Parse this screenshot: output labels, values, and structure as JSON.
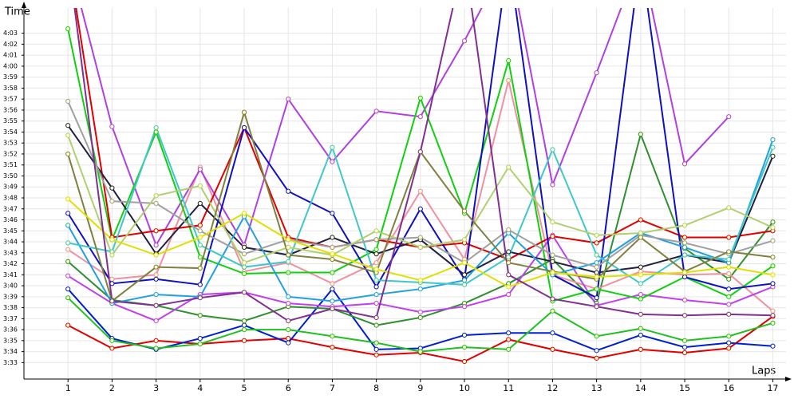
{
  "chart_data": {
    "type": "line",
    "x_label": "Laps",
    "y_label": "Time",
    "x": [
      1,
      2,
      3,
      4,
      5,
      6,
      7,
      8,
      9,
      10,
      11,
      12,
      13,
      14,
      15,
      16,
      17
    ],
    "xlim": [
      0,
      17.3
    ],
    "xticks": [
      1,
      2,
      3,
      4,
      5,
      6,
      7,
      8,
      9,
      10,
      11,
      12,
      13,
      14,
      15,
      16,
      17
    ],
    "ylim": [
      211.5,
      245.3
    ],
    "yticks": [
      {
        "value": 213,
        "label": "3:33"
      },
      {
        "value": 214,
        "label": "3:34"
      },
      {
        "value": 215,
        "label": "3:35"
      },
      {
        "value": 216,
        "label": "3:36"
      },
      {
        "value": 217,
        "label": "3:37"
      },
      {
        "value": 218,
        "label": "3:38"
      },
      {
        "value": 219,
        "label": "3:39"
      },
      {
        "value": 220,
        "label": "3:40"
      },
      {
        "value": 221,
        "label": "3:41"
      },
      {
        "value": 222,
        "label": "3:42"
      },
      {
        "value": 223,
        "label": "3:43"
      },
      {
        "value": 224,
        "label": "3:44"
      },
      {
        "value": 225,
        "label": "3:45"
      },
      {
        "value": 226,
        "label": "3:46"
      },
      {
        "value": 227,
        "label": "3:47"
      },
      {
        "value": 228,
        "label": "3:48"
      },
      {
        "value": 229,
        "label": "3:49"
      },
      {
        "value": 230,
        "label": "3:50"
      },
      {
        "value": 231,
        "label": "3:51"
      },
      {
        "value": 232,
        "label": "3:52"
      },
      {
        "value": 233,
        "label": "3:53"
      },
      {
        "value": 234,
        "label": "3:54"
      },
      {
        "value": 235,
        "label": "3:55"
      },
      {
        "value": 236,
        "label": "3:56"
      },
      {
        "value": 237,
        "label": "3:57"
      },
      {
        "value": 238,
        "label": "3:58"
      },
      {
        "value": 239,
        "label": "3:59"
      },
      {
        "value": 240,
        "label": "4:00"
      },
      {
        "value": 241,
        "label": "4:01"
      },
      {
        "value": 242,
        "label": "4:02"
      },
      {
        "value": 243,
        "label": "4:03"
      }
    ],
    "grid": true,
    "series": [
      {
        "color": "#e00000",
        "values": [
          216.4,
          214.3,
          215.0,
          214.7,
          215.0,
          215.2,
          214.4,
          213.7,
          213.9,
          213.1,
          215.1,
          214.2,
          213.4,
          214.2,
          213.9,
          214.3,
          217.2
        ]
      },
      {
        "color": "#0020d0",
        "values": [
          219.7,
          215.2,
          214.2,
          215.2,
          216.4,
          214.8,
          219.7,
          214.2,
          214.3,
          215.5,
          215.7,
          215.7,
          214.1,
          215.5,
          214.4,
          214.8,
          214.5
        ]
      },
      {
        "color": "#20c020",
        "values": [
          218.9,
          215.0,
          214.3,
          214.7,
          216.0,
          216.0,
          215.4,
          214.8,
          214.0,
          214.4,
          214.2,
          217.7,
          215.4,
          216.1,
          215.0,
          215.4,
          216.6
        ]
      },
      {
        "color": "#309030",
        "values": [
          222.2,
          218.7,
          218.2,
          217.3,
          216.8,
          218.1,
          217.9,
          216.4,
          217.1,
          218.4,
          220.2,
          222.4,
          218.4,
          233.8,
          223.4,
          220.6,
          225.8
        ]
      },
      {
        "color": "#f090a0",
        "values": [
          223.3,
          220.6,
          221.0,
          230.8,
          221.3,
          222.1,
          220.2,
          222.1,
          228.6,
          222.4,
          238.7,
          221.0,
          219.7,
          221.3,
          221.0,
          221.1,
          217.7
        ]
      },
      {
        "color": "#c040f0",
        "values": [
          220.9,
          218.4,
          216.8,
          219.2,
          219.4,
          218.4,
          218.1,
          218.4,
          217.6,
          218.1,
          219.2,
          224.6,
          218.2,
          219.2,
          218.7,
          218.3,
          219.9
        ]
      },
      {
        "color": "#b040e0",
        "values": [
          250,
          234.5,
          223.7,
          230.6,
          223.7,
          237.0,
          231.3,
          235.9,
          235.4,
          242.3,
          250,
          229.2,
          239.4,
          250,
          231.1,
          235.4,
          null
        ]
      },
      {
        "color": "#10d010",
        "values": [
          243.4,
          224.2,
          234.0,
          222.6,
          221.1,
          221.2,
          221.2,
          223.3,
          237.1,
          226.6,
          240.5,
          218.6,
          219.7,
          218.8,
          220.8,
          219.0,
          221.8
        ]
      },
      {
        "color": "#e00000",
        "values": [
          250,
          224.4,
          225.0,
          225.5,
          234.4,
          224.4,
          223.5,
          224.2,
          223.5,
          223.9,
          222.4,
          224.5,
          223.9,
          226.0,
          224.4,
          224.4,
          225.0
        ]
      },
      {
        "color": "#202040",
        "values": [
          234.6,
          228.9,
          222.9,
          227.5,
          223.5,
          222.8,
          224.4,
          222.9,
          224.2,
          221.0,
          223.1,
          222.2,
          221.2,
          221.7,
          222.8,
          222.1,
          231.8
        ]
      },
      {
        "color": "#1010c0",
        "values": [
          226.6,
          220.2,
          220.6,
          220.1,
          234.4,
          228.6,
          226.6,
          219.9,
          227.0,
          220.6,
          250,
          221.0,
          218.9,
          250,
          220.8,
          219.7,
          220.2
        ]
      },
      {
        "color": "#20a0e0",
        "values": [
          225.5,
          218.4,
          219.2,
          219.0,
          226.3,
          219.0,
          218.6,
          219.2,
          219.7,
          220.5,
          224.8,
          221.0,
          222.1,
          224.8,
          223.5,
          222.1,
          233.3
        ]
      },
      {
        "color": "#40c8c8",
        "values": [
          223.9,
          223.1,
          234.4,
          223.7,
          221.7,
          222.2,
          232.6,
          220.5,
          220.3,
          220.1,
          222.6,
          232.4,
          222.8,
          220.2,
          222.8,
          222.4,
          232.6
        ]
      },
      {
        "color": "#a0a0a0",
        "values": [
          236.8,
          227.7,
          227.5,
          225.0,
          222.9,
          224.2,
          223.5,
          224.2,
          224.4,
          222.1,
          225.1,
          222.8,
          221.7,
          224.6,
          223.9,
          222.9,
          224.1
        ]
      },
      {
        "color": "#b0d070",
        "values": [
          233.7,
          222.8,
          228.2,
          229.1,
          222.1,
          223.5,
          222.8,
          225.0,
          223.5,
          224.2,
          230.8,
          225.8,
          224.6,
          224.8,
          225.5,
          227.1,
          225.3
        ]
      },
      {
        "color": "#808040",
        "values": [
          232.0,
          218.6,
          221.7,
          221.6,
          235.8,
          222.8,
          222.4,
          221.2,
          232.2,
          226.8,
          222.1,
          221.3,
          220.6,
          224.4,
          221.3,
          223.1,
          222.6
        ]
      },
      {
        "color": "#e0e000",
        "values": [
          227.9,
          224.2,
          222.8,
          224.4,
          226.6,
          224.2,
          222.9,
          221.5,
          220.5,
          222.1,
          219.9,
          221.2,
          220.8,
          221.0,
          221.2,
          221.7,
          221.0
        ]
      },
      {
        "color": "#803090",
        "values": [
          250,
          218.6,
          218.2,
          218.9,
          219.4,
          216.8,
          217.9,
          217.1,
          232.2,
          250,
          221.0,
          218.8,
          218.1,
          217.4,
          217.3,
          217.4,
          217.3
        ]
      }
    ]
  }
}
